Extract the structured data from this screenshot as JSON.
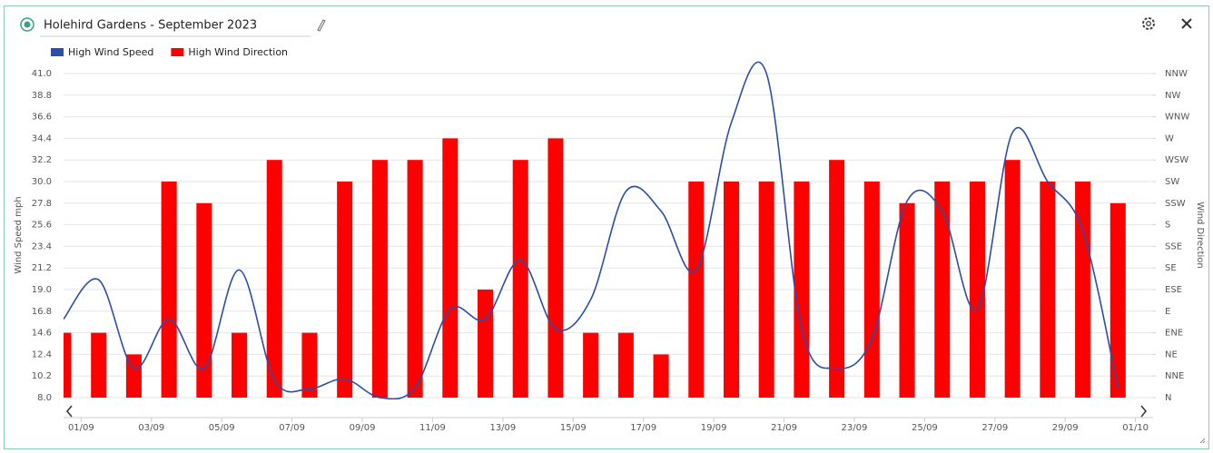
{
  "chart_data": {
    "type": "bar-line",
    "title": "Holehird Gardens - September 2023",
    "y_label": "Wind Speed mph",
    "y2_label": "Wind Direction",
    "x": [
      0.5,
      1.5,
      2.5,
      3.5,
      4.5,
      5.5,
      6.5,
      7.5,
      8.5,
      9.5,
      10.5,
      11.5,
      12.5,
      13.5,
      14.5,
      15.5,
      16.5,
      17.5,
      18.5,
      19.5,
      20.5,
      21.5,
      22.5,
      23.5,
      24.5,
      25.5,
      26.5,
      27.5,
      28.5,
      29.5,
      30.5
    ],
    "xlim": [
      0.5,
      31.5
    ],
    "xticks": [
      {
        "value": 1,
        "label": "01/09"
      },
      {
        "value": 3,
        "label": "03/09"
      },
      {
        "value": 5,
        "label": "05/09"
      },
      {
        "value": 7,
        "label": "07/09"
      },
      {
        "value": 9,
        "label": "09/09"
      },
      {
        "value": 11,
        "label": "11/09"
      },
      {
        "value": 13,
        "label": "13/09"
      },
      {
        "value": 15,
        "label": "15/09"
      },
      {
        "value": 17,
        "label": "17/09"
      },
      {
        "value": 19,
        "label": "19/09"
      },
      {
        "value": 21,
        "label": "21/09"
      },
      {
        "value": 23,
        "label": "23/09"
      },
      {
        "value": 25,
        "label": "25/09"
      },
      {
        "value": 27,
        "label": "27/09"
      },
      {
        "value": 29,
        "label": "29/09"
      },
      {
        "value": 31,
        "label": "01/10"
      }
    ],
    "ylim": [
      8,
      41
    ],
    "yticks": [
      {
        "value": 8,
        "label": "8.0"
      },
      10.2,
      12.4,
      14.6,
      16.8,
      {
        "value": 19,
        "label": "19.0"
      },
      21.2,
      23.4,
      25.6,
      27.8,
      {
        "value": 30,
        "label": "30.0"
      },
      32.2,
      34.4,
      36.6,
      38.8,
      {
        "value": 41,
        "label": "41.0"
      }
    ],
    "y2lim": [
      0,
      337.5
    ],
    "y2ticks": [
      {
        "value": 0,
        "label": "N"
      },
      {
        "value": 22.5,
        "label": "NNE"
      },
      {
        "value": 45,
        "label": "NE"
      },
      {
        "value": 67.5,
        "label": "ENE"
      },
      {
        "value": 90,
        "label": "E"
      },
      {
        "value": 112.5,
        "label": "ESE"
      },
      {
        "value": 135,
        "label": "SE"
      },
      {
        "value": 157.5,
        "label": "SSE"
      },
      {
        "value": 180,
        "label": "S"
      },
      {
        "value": 202.5,
        "label": "SSW"
      },
      {
        "value": 225,
        "label": "SW"
      },
      {
        "value": 247.5,
        "label": "WSW"
      },
      {
        "value": 270,
        "label": "W"
      },
      {
        "value": 292.5,
        "label": "WNW"
      },
      {
        "value": 315,
        "label": "NW"
      },
      {
        "value": 337.5,
        "label": "NNW"
      }
    ],
    "grid": true,
    "series": [
      {
        "name": "High Wind Speed",
        "type": "line",
        "color": "#2a4fa8",
        "values": [
          16.0,
          20.0,
          11.0,
          16.0,
          11.0,
          21.0,
          9.8,
          8.9,
          9.9,
          8.0,
          9.0,
          17.0,
          16.0,
          22.0,
          15.0,
          18.0,
          29.0,
          27.0,
          21.0,
          36.0,
          41.0,
          15.0,
          11.0,
          14.0,
          28.0,
          27.0,
          17.0,
          35.0,
          30.0,
          25.0,
          9.0
        ]
      },
      {
        "name": "High Wind Direction",
        "type": "bar",
        "axis": "y2",
        "color": "#ff0000",
        "values": [
          67.5,
          67.5,
          45,
          225,
          202.5,
          67.5,
          247.5,
          67.5,
          225,
          247.5,
          247.5,
          270,
          112.5,
          247.5,
          270,
          67.5,
          67.5,
          45,
          225,
          225,
          225,
          225,
          247.5,
          225,
          202.5,
          225,
          225,
          247.5,
          225,
          225,
          202.5
        ]
      }
    ]
  }
}
